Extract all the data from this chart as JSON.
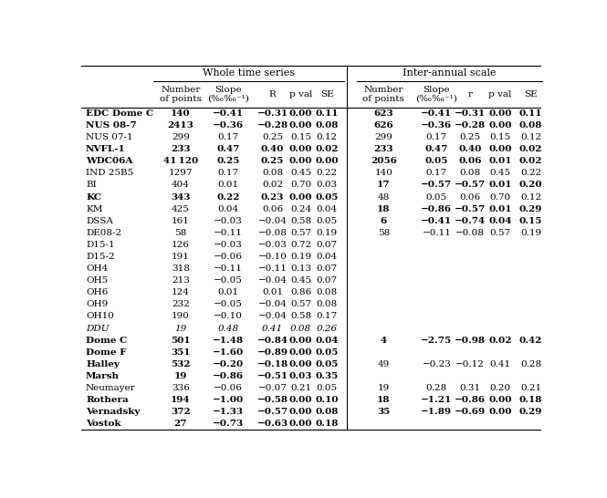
{
  "col_header_group1": "Whole time series",
  "col_header_group2": "Inter-annual scale",
  "sub_headers_wts": [
    "Number\nof points",
    "Slope\n(‰‰⁻¹)",
    "R",
    "p val",
    "SE"
  ],
  "sub_headers_ias": [
    "Number\nof points",
    "Slope\n(‰‰⁻¹)",
    "r",
    "p val",
    "SE"
  ],
  "rows": [
    {
      "name": "EDC Dome C",
      "bold": true,
      "italic": false,
      "wts": [
        "140",
        "−0.41",
        "−0.31",
        "0.00",
        "0.11"
      ],
      "ias": [
        "623",
        "−0.41",
        "−0.31",
        "0.00",
        "0.11"
      ],
      "ias_bold": true
    },
    {
      "name": "NUS 08-7",
      "bold": true,
      "italic": false,
      "wts": [
        "2413",
        "−0.36",
        "−0.28",
        "0.00",
        "0.08"
      ],
      "ias": [
        "626",
        "−0.36",
        "−0.28",
        "0.00",
        "0.08"
      ],
      "ias_bold": true
    },
    {
      "name": "NUS 07-1",
      "bold": false,
      "italic": false,
      "wts": [
        "299",
        "0.17",
        "0.25",
        "0.15",
        "0.12"
      ],
      "ias": [
        "299",
        "0.17",
        "0.25",
        "0.15",
        "0.12"
      ],
      "ias_bold": false
    },
    {
      "name": "NVFL-1",
      "bold": true,
      "italic": false,
      "wts": [
        "233",
        "0.47",
        "0.40",
        "0.00",
        "0.02"
      ],
      "ias": [
        "233",
        "0.47",
        "0.40",
        "0.00",
        "0.02"
      ],
      "ias_bold": true
    },
    {
      "name": "WDC06A",
      "bold": true,
      "italic": false,
      "wts": [
        "41 120",
        "0.25",
        "0.25",
        "0.00",
        "0.00"
      ],
      "ias": [
        "2056",
        "0.05",
        "0.06",
        "0.01",
        "0.02"
      ],
      "ias_bold": true
    },
    {
      "name": "IND 25B5",
      "bold": false,
      "italic": false,
      "wts": [
        "1297",
        "0.17",
        "0.08",
        "0.45",
        "0.22"
      ],
      "ias": [
        "140",
        "0.17",
        "0.08",
        "0.45",
        "0.22"
      ],
      "ias_bold": false
    },
    {
      "name": "BI",
      "bold": false,
      "italic": false,
      "wts": [
        "404",
        "0.01",
        "0.02",
        "0.70",
        "0.03"
      ],
      "ias": [
        "17",
        "−0.57",
        "−0.57",
        "0.01",
        "0.20"
      ],
      "ias_bold": true
    },
    {
      "name": "KC",
      "bold": true,
      "italic": false,
      "wts": [
        "343",
        "0.22",
        "0.23",
        "0.00",
        "0.05"
      ],
      "ias": [
        "48",
        "0.05",
        "0.06",
        "0.70",
        "0.12"
      ],
      "ias_bold": false
    },
    {
      "name": "KM",
      "bold": false,
      "italic": false,
      "wts": [
        "425",
        "0.04",
        "0.06",
        "0.24",
        "0.04"
      ],
      "ias": [
        "18",
        "−0.86",
        "−0.57",
        "0.01",
        "0.29"
      ],
      "ias_bold": true
    },
    {
      "name": "DSSA",
      "bold": false,
      "italic": false,
      "wts": [
        "161",
        "−0.03",
        "−0.04",
        "0.58",
        "0.05"
      ],
      "ias": [
        "6",
        "−0.41",
        "−0.74",
        "0.04",
        "0.15"
      ],
      "ias_bold": true
    },
    {
      "name": "DE08-2",
      "bold": false,
      "italic": false,
      "wts": [
        "58",
        "−0.11",
        "−0.08",
        "0.57",
        "0.19"
      ],
      "ias": [
        "58",
        "−0.11",
        "−0.08",
        "0.57",
        "0.19"
      ],
      "ias_bold": false
    },
    {
      "name": "D15-1",
      "bold": false,
      "italic": false,
      "wts": [
        "126",
        "−0.03",
        "−0.03",
        "0.72",
        "0.07"
      ],
      "ias": [],
      "ias_bold": false
    },
    {
      "name": "D15-2",
      "bold": false,
      "italic": false,
      "wts": [
        "191",
        "−0.06",
        "−0.10",
        "0.19",
        "0.04"
      ],
      "ias": [],
      "ias_bold": false
    },
    {
      "name": "OH4",
      "bold": false,
      "italic": false,
      "wts": [
        "318",
        "−0.11",
        "−0.11",
        "0.13",
        "0.07"
      ],
      "ias": [],
      "ias_bold": false
    },
    {
      "name": "OH5",
      "bold": false,
      "italic": false,
      "wts": [
        "213",
        "−0.05",
        "−0.04",
        "0.45",
        "0.07"
      ],
      "ias": [],
      "ias_bold": false
    },
    {
      "name": "OH6",
      "bold": false,
      "italic": false,
      "wts": [
        "124",
        "0.01",
        "0.01",
        "0.86",
        "0.08"
      ],
      "ias": [],
      "ias_bold": false
    },
    {
      "name": "OH9",
      "bold": false,
      "italic": false,
      "wts": [
        "232",
        "−0.05",
        "−0.04",
        "0.57",
        "0.08"
      ],
      "ias": [],
      "ias_bold": false
    },
    {
      "name": "OH10",
      "bold": false,
      "italic": false,
      "wts": [
        "190",
        "−0.10",
        "−0.04",
        "0.58",
        "0.17"
      ],
      "ias": [],
      "ias_bold": false
    },
    {
      "name": "DDU",
      "bold": false,
      "italic": true,
      "wts": [
        "19",
        "0.48",
        "0.41",
        "0.08",
        "0.26"
      ],
      "ias": [],
      "ias_bold": false
    },
    {
      "name": "Dome C",
      "bold": true,
      "italic": false,
      "wts": [
        "501",
        "−1.48",
        "−0.84",
        "0.00",
        "0.04"
      ],
      "ias": [
        "4",
        "−2.75",
        "−0.98",
        "0.02",
        "0.42"
      ],
      "ias_bold": true
    },
    {
      "name": "Dome F",
      "bold": true,
      "italic": false,
      "wts": [
        "351",
        "−1.60",
        "−0.89",
        "0.00",
        "0.05"
      ],
      "ias": [],
      "ias_bold": false
    },
    {
      "name": "Halley",
      "bold": true,
      "italic": false,
      "wts": [
        "532",
        "−0.20",
        "−0.18",
        "0.00",
        "0.05"
      ],
      "ias": [
        "49",
        "−0.23",
        "−0.12",
        "0.41",
        "0.28"
      ],
      "ias_bold": false
    },
    {
      "name": "Marsh",
      "bold": true,
      "italic": false,
      "wts": [
        "19",
        "−0.86",
        "−0.51",
        "0.03",
        "0.35"
      ],
      "ias": [],
      "ias_bold": false
    },
    {
      "name": "Neumayer",
      "bold": false,
      "italic": false,
      "wts": [
        "336",
        "−0.06",
        "−0.07",
        "0.21",
        "0.05"
      ],
      "ias": [
        "19",
        "0.28",
        "0.31",
        "0.20",
        "0.21"
      ],
      "ias_bold": false
    },
    {
      "name": "Rothera",
      "bold": true,
      "italic": false,
      "wts": [
        "194",
        "−1.00",
        "−0.58",
        "0.00",
        "0.10"
      ],
      "ias": [
        "18",
        "−1.21",
        "−0.86",
        "0.00",
        "0.18"
      ],
      "ias_bold": true
    },
    {
      "name": "Vernadsky",
      "bold": true,
      "italic": false,
      "wts": [
        "372",
        "−1.33",
        "−0.57",
        "0.00",
        "0.08"
      ],
      "ias": [
        "35",
        "−1.89",
        "−0.69",
        "0.00",
        "0.29"
      ],
      "ias_bold": true
    },
    {
      "name": "Vostok",
      "bold": true,
      "italic": false,
      "wts": [
        "27",
        "−0.73",
        "−0.63",
        "0.00",
        "0.18"
      ],
      "ias": [],
      "ias_bold": false
    }
  ]
}
